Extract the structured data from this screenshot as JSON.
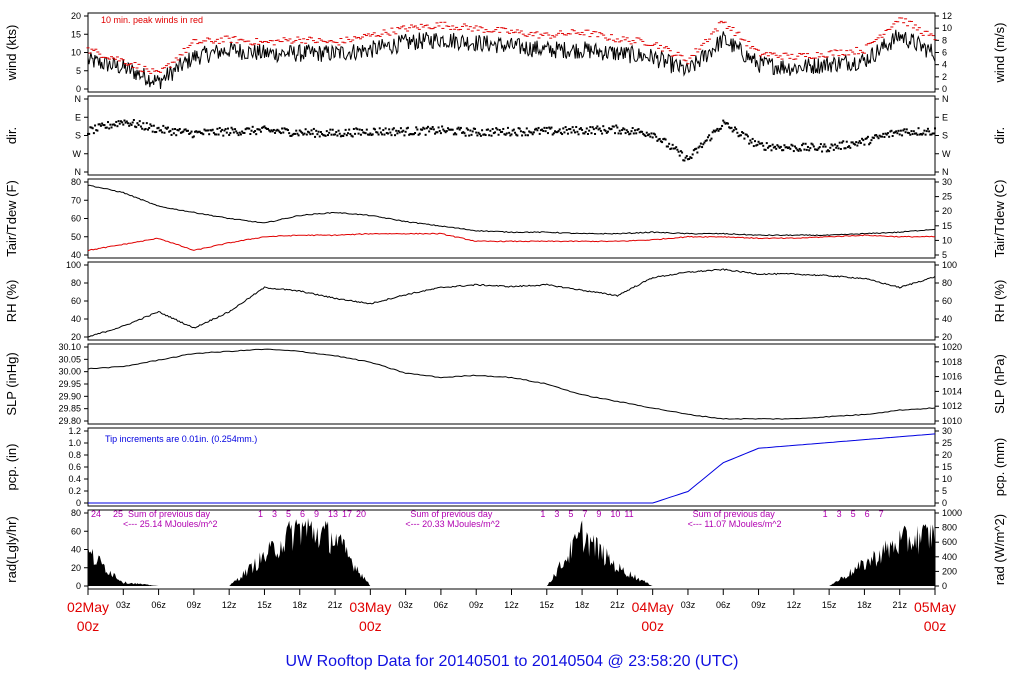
{
  "title": "UW Rooftop Data for 20140501  to  20140504 @ 23:58:20  (UTC)",
  "time_axis": {
    "tick_labels": [
      "03z",
      "06z",
      "09z",
      "12z",
      "15z",
      "18z",
      "21z",
      "03z",
      "06z",
      "09z",
      "12z",
      "15z",
      "18z",
      "21z",
      "03z",
      "06z",
      "09z",
      "12z",
      "15z",
      "18z",
      "21z"
    ],
    "dates": [
      {
        "date": "02May",
        "hour": "00z"
      },
      {
        "date": "03May",
        "hour": "00z"
      },
      {
        "date": "04May",
        "hour": "00z"
      },
      {
        "date": "05May",
        "hour": "00z"
      }
    ]
  },
  "panels": {
    "wind": {
      "left_label": "wind (kts)",
      "right_label": "wind (m/s)",
      "left_ticks": [
        "0",
        "5",
        "10",
        "15",
        "20"
      ],
      "right_ticks": [
        "0",
        "2",
        "4",
        "6",
        "8",
        "10",
        "12"
      ],
      "note": "10 min. peak winds in red"
    },
    "dir": {
      "left_label": "dir.",
      "right_label": "dir.",
      "ticks": [
        "N",
        "W",
        "S",
        "E",
        "N"
      ]
    },
    "temp": {
      "left_label": "Tair/Tdew (F)",
      "right_label": "Tair/Tdew (C)",
      "left_ticks": [
        "40",
        "50",
        "60",
        "70",
        "80"
      ],
      "right_ticks": [
        "5",
        "10",
        "15",
        "20",
        "25",
        "30"
      ]
    },
    "rh": {
      "left_label": "RH (%)",
      "right_label": "RH (%)",
      "left_ticks": [
        "20",
        "40",
        "60",
        "80",
        "100"
      ],
      "right_ticks": [
        "20",
        "40",
        "60",
        "80",
        "100"
      ]
    },
    "slp": {
      "left_label": "SLP (inHg)",
      "right_label": "SLP (hPa)",
      "left_ticks": [
        "29.80",
        "29.85",
        "29.90",
        "29.95",
        "30.00",
        "30.05",
        "30.10"
      ],
      "right_ticks": [
        "1010",
        "1012",
        "1014",
        "1016",
        "1018",
        "1020"
      ]
    },
    "pcp": {
      "left_label": "pcp. (in)",
      "right_label": "pcp. (mm)",
      "left_ticks": [
        "0",
        "0.2",
        "0.4",
        "0.6",
        "0.8",
        "1.0",
        "1.2"
      ],
      "right_ticks": [
        "0",
        "5",
        "10",
        "15",
        "20",
        "25",
        "30"
      ],
      "note": "Tip increments are 0.01in. (0.254mm.)"
    },
    "rad": {
      "left_label": "rad(Lgly/hr)",
      "right_label": "rad (W/m^2)",
      "left_ticks": [
        "0",
        "20",
        "40",
        "60",
        "80"
      ],
      "right_ticks": [
        "0",
        "200",
        "400",
        "600",
        "800",
        "1000"
      ],
      "sum_label": "Sum of previous day",
      "sums": [
        "<--- 25.14 MJoules/m^2",
        "<--- 20.33 MJoules/m^2",
        "<--- 11.07 MJoules/m^2"
      ],
      "hour_marks": [
        [
          "24",
          "25",
          "1",
          "3",
          "5",
          "6",
          "9",
          "13",
          "17",
          "20"
        ],
        [
          "1",
          "3",
          "5",
          "7",
          "9",
          "10",
          "11"
        ],
        [
          "1",
          "3",
          "5",
          "6",
          "7"
        ]
      ]
    }
  },
  "colors": {
    "wind_peak": "#e00000",
    "dewpoint": "#e00000",
    "precip": "#0000e0",
    "rad_notes": "#b000b0",
    "date_labels": "#e00000",
    "title": "#1010e0"
  },
  "chart_data": {
    "type": "line",
    "x": [
      "02May 00z",
      "02May 03z",
      "02May 06z",
      "02May 09z",
      "02May 12z",
      "02May 15z",
      "02May 18z",
      "02May 21z",
      "03May 00z",
      "03May 03z",
      "03May 06z",
      "03May 09z",
      "03May 12z",
      "03May 15z",
      "03May 18z",
      "03May 21z",
      "04May 00z",
      "04May 03z",
      "04May 06z",
      "04May 09z",
      "04May 12z",
      "04May 15z",
      "04May 18z",
      "04May 21z",
      "05May 00z"
    ],
    "series": [
      {
        "name": "wind (kts)",
        "values": [
          8,
          6,
          2,
          9,
          11,
          10,
          10,
          10,
          11,
          13,
          14,
          13,
          12,
          11,
          11,
          10,
          9,
          5,
          14,
          7,
          6,
          7,
          8,
          15,
          10
        ]
      },
      {
        "name": "10 min. peak winds",
        "values": [
          11,
          8,
          4,
          13,
          14,
          13,
          14,
          13,
          15,
          17,
          18,
          17,
          16,
          15,
          16,
          14,
          13,
          8,
          19,
          10,
          9,
          10,
          11,
          20,
          14
        ]
      },
      {
        "name": "Tair/Tdew (F)",
        "values": [
          84,
          79,
          70,
          66,
          62,
          59,
          64,
          66,
          64,
          60,
          57,
          54,
          53,
          53,
          52,
          52,
          53,
          52,
          52,
          51,
          51,
          51,
          52,
          53,
          55
        ]
      },
      {
        "name": "Tdew",
        "values": [
          41,
          45,
          49,
          41,
          46,
          50,
          51,
          51,
          52,
          52,
          52,
          47,
          47,
          47,
          47,
          47,
          48,
          50,
          50,
          49,
          49,
          50,
          51,
          50,
          50
        ]
      },
      {
        "name": "RH (%)",
        "values": [
          20,
          32,
          48,
          30,
          48,
          75,
          71,
          63,
          57,
          67,
          75,
          78,
          76,
          78,
          72,
          66,
          86,
          92,
          95,
          90,
          90,
          88,
          85,
          75,
          87
        ]
      },
      {
        "name": "SLP (inHg)",
        "values": [
          30.02,
          30.03,
          30.06,
          30.09,
          30.1,
          30.11,
          30.1,
          30.08,
          30.05,
          30.0,
          29.98,
          29.99,
          29.98,
          29.95,
          29.9,
          29.87,
          29.84,
          29.81,
          29.79,
          29.79,
          29.79,
          29.8,
          29.81,
          29.83,
          29.84
        ]
      },
      {
        "name": "pcp. (in)",
        "values": [
          0,
          0,
          0,
          0,
          0,
          0,
          0,
          0,
          0,
          0,
          0,
          0,
          0,
          0,
          0,
          0,
          0,
          0.2,
          0.7,
          0.95,
          1.0,
          1.05,
          1.1,
          1.15,
          1.2
        ]
      },
      {
        "name": "rad (W/m^2)",
        "values": [
          450,
          50,
          0,
          0,
          0,
          400,
          800,
          650,
          0,
          0,
          0,
          0,
          0,
          0,
          700,
          250,
          0,
          0,
          0,
          0,
          0,
          0,
          300,
          600,
          700
        ]
      }
    ]
  }
}
